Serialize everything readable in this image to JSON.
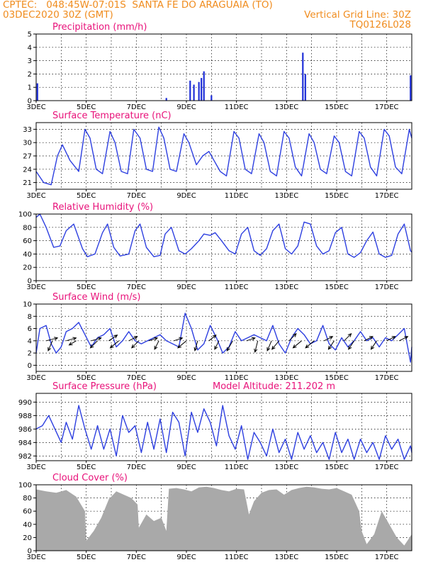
{
  "header": {
    "line1_left": "CPTEC:   048:45W-07:01S  SANTA FE DO ARAGUAIA (TO)",
    "line2_left": "03DEC2020 30Z (GMT)",
    "line2_right": "Vertical Grid Line: 30Z",
    "line3_right": "TQ0126L028"
  },
  "colors": {
    "header": "#f08c1e",
    "title": "#e8127a",
    "line": "#2d3fe0",
    "bar": "#1f2fd8",
    "cloud": "#a9a9a9"
  },
  "x_axis": {
    "labels": [
      "3DEC",
      "5DEC",
      "7DEC",
      "9DEC",
      "11DEC",
      "13DEC",
      "15DEC",
      "17DEC"
    ],
    "start_day": 3.0,
    "end_day": 18.0
  },
  "chart_data": [
    {
      "type": "bar",
      "title": "Precipitation (mm/h)",
      "yticks": [
        0,
        1,
        2,
        3,
        4,
        5
      ],
      "ylim": [
        0,
        5
      ],
      "events": [
        {
          "day": 3.05,
          "value": 1.3
        },
        {
          "day": 8.2,
          "value": 0.2
        },
        {
          "day": 9.15,
          "value": 1.5
        },
        {
          "day": 9.3,
          "value": 1.2
        },
        {
          "day": 9.5,
          "value": 1.4
        },
        {
          "day": 9.6,
          "value": 1.7
        },
        {
          "day": 9.7,
          "value": 2.2
        },
        {
          "day": 10.0,
          "value": 0.4
        },
        {
          "day": 13.65,
          "value": 3.6
        },
        {
          "day": 13.75,
          "value": 2.0
        },
        {
          "day": 17.95,
          "value": 1.9
        }
      ]
    },
    {
      "type": "line",
      "title": "Surface Temperature (nC)",
      "yticks": [
        21,
        24,
        27,
        30,
        33
      ],
      "ylim": [
        19.5,
        34.5
      ],
      "x": [
        3.0,
        3.3,
        3.6,
        3.85,
        4.05,
        4.35,
        4.7,
        4.95,
        5.15,
        5.4,
        5.65,
        5.95,
        6.15,
        6.4,
        6.65,
        6.9,
        7.15,
        7.4,
        7.65,
        7.9,
        8.1,
        8.35,
        8.6,
        8.9,
        9.1,
        9.4,
        9.65,
        9.9,
        10.1,
        10.35,
        10.6,
        10.9,
        11.1,
        11.35,
        11.6,
        11.9,
        12.1,
        12.35,
        12.6,
        12.9,
        13.1,
        13.35,
        13.6,
        13.9,
        14.1,
        14.35,
        14.6,
        14.9,
        15.1,
        15.35,
        15.6,
        15.9,
        16.1,
        16.35,
        16.6,
        16.9,
        17.1,
        17.35,
        17.6,
        17.9,
        18.0
      ],
      "values": [
        23.5,
        21.0,
        20.5,
        27.0,
        29.5,
        26.0,
        23.5,
        33.0,
        31.0,
        24.0,
        23.0,
        32.5,
        30.0,
        23.5,
        23.0,
        33.0,
        31.0,
        24.0,
        23.5,
        33.5,
        31.0,
        24.0,
        23.5,
        32.0,
        30.0,
        25.0,
        27.0,
        28.0,
        26.0,
        23.5,
        22.5,
        32.5,
        31.0,
        24.0,
        23.0,
        32.0,
        30.0,
        23.5,
        22.5,
        32.5,
        31.0,
        24.5,
        22.5,
        32.0,
        30.0,
        24.0,
        23.0,
        31.5,
        30.0,
        23.5,
        22.5,
        32.5,
        31.0,
        24.5,
        22.5,
        33.0,
        31.5,
        24.5,
        23.0,
        33.0,
        31.0
      ]
    },
    {
      "type": "line",
      "title": "Relative Humidity (%)",
      "yticks": [
        0,
        20,
        40,
        60,
        80,
        100
      ],
      "ylim": [
        0,
        100
      ],
      "x": [
        3.0,
        3.15,
        3.4,
        3.7,
        3.95,
        4.2,
        4.5,
        4.85,
        5.05,
        5.35,
        5.65,
        5.85,
        6.1,
        6.35,
        6.7,
        6.95,
        7.15,
        7.4,
        7.7,
        7.95,
        8.15,
        8.4,
        8.7,
        8.95,
        9.2,
        9.5,
        9.7,
        9.95,
        10.15,
        10.4,
        10.7,
        10.95,
        11.2,
        11.45,
        11.7,
        11.95,
        12.2,
        12.45,
        12.7,
        12.95,
        13.2,
        13.45,
        13.7,
        13.95,
        14.2,
        14.45,
        14.7,
        14.95,
        15.2,
        15.45,
        15.7,
        15.95,
        16.2,
        16.45,
        16.7,
        16.95,
        17.2,
        17.45,
        17.7,
        17.95,
        18.0
      ],
      "values": [
        95,
        100,
        80,
        50,
        52,
        75,
        85,
        48,
        36,
        40,
        72,
        85,
        50,
        37,
        40,
        75,
        85,
        50,
        36,
        38,
        70,
        80,
        45,
        40,
        48,
        60,
        70,
        68,
        72,
        60,
        45,
        40,
        70,
        80,
        45,
        38,
        48,
        75,
        85,
        48,
        40,
        52,
        88,
        85,
        52,
        40,
        45,
        72,
        80,
        40,
        35,
        42,
        60,
        73,
        40,
        35,
        38,
        70,
        85,
        45,
        43
      ]
    },
    {
      "type": "line",
      "title": "Surface Wind (m/s)",
      "yticks": [
        0,
        2,
        4,
        6,
        8,
        10
      ],
      "ylim": [
        -1,
        10
      ],
      "x": [
        3.0,
        3.15,
        3.4,
        3.6,
        3.8,
        4.0,
        4.2,
        4.45,
        4.7,
        4.95,
        5.2,
        5.45,
        5.7,
        5.95,
        6.2,
        6.45,
        6.7,
        6.95,
        7.2,
        7.45,
        7.7,
        7.95,
        8.2,
        8.45,
        8.7,
        8.95,
        9.2,
        9.45,
        9.7,
        9.95,
        10.2,
        10.45,
        10.7,
        10.95,
        11.2,
        11.45,
        11.7,
        11.95,
        12.2,
        12.45,
        12.7,
        12.95,
        13.2,
        13.45,
        13.7,
        13.95,
        14.2,
        14.45,
        14.7,
        14.95,
        15.2,
        15.45,
        15.7,
        15.95,
        16.2,
        16.45,
        16.7,
        16.95,
        17.2,
        17.45,
        17.7,
        17.95,
        18.0
      ],
      "values": [
        2.0,
        6.0,
        6.5,
        3.5,
        2.0,
        3.0,
        5.5,
        6.0,
        7.0,
        5.0,
        3.0,
        4.5,
        5.0,
        6.0,
        3.0,
        4.0,
        5.5,
        4.0,
        3.5,
        4.0,
        4.5,
        5.0,
        4.0,
        3.5,
        3.0,
        8.5,
        6.0,
        2.5,
        3.5,
        6.5,
        4.5,
        2.0,
        3.0,
        5.5,
        4.0,
        4.5,
        5.0,
        4.5,
        4.0,
        6.5,
        3.5,
        2.0,
        4.5,
        6.0,
        5.0,
        3.5,
        4.0,
        6.5,
        3.5,
        2.5,
        4.5,
        3.0,
        4.0,
        5.5,
        4.0,
        4.5,
        3.0,
        4.5,
        4.0,
        5.0,
        6.0,
        0.5,
        3.0
      ],
      "arrows": [
        {
          "day": 3.4,
          "dx": 16,
          "dy": -4
        },
        {
          "day": 3.65,
          "dx": -6,
          "dy": 14
        },
        {
          "day": 4.2,
          "dx": 14,
          "dy": -4
        },
        {
          "day": 4.6,
          "dx": -10,
          "dy": 6
        },
        {
          "day": 5.2,
          "dx": 14,
          "dy": -4
        },
        {
          "day": 5.45,
          "dx": -10,
          "dy": 10
        },
        {
          "day": 5.9,
          "dx": 12,
          "dy": -8
        },
        {
          "day": 6.3,
          "dx": -12,
          "dy": 10
        },
        {
          "day": 6.7,
          "dx": 12,
          "dy": -6
        },
        {
          "day": 7.1,
          "dx": -10,
          "dy": 10
        },
        {
          "day": 7.5,
          "dx": 12,
          "dy": -4
        },
        {
          "day": 7.9,
          "dx": -6,
          "dy": 12
        },
        {
          "day": 8.5,
          "dx": 12,
          "dy": -4
        },
        {
          "day": 9.0,
          "dx": -12,
          "dy": 10
        },
        {
          "day": 9.45,
          "dx": -4,
          "dy": 14
        },
        {
          "day": 9.9,
          "dx": 10,
          "dy": -8
        },
        {
          "day": 10.3,
          "dx": -6,
          "dy": 12
        },
        {
          "day": 10.85,
          "dx": -8,
          "dy": 14
        },
        {
          "day": 11.4,
          "dx": 12,
          "dy": -4
        },
        {
          "day": 11.85,
          "dx": -4,
          "dy": 16
        },
        {
          "day": 12.4,
          "dx": -6,
          "dy": 14
        },
        {
          "day": 12.7,
          "dx": -10,
          "dy": 12
        },
        {
          "day": 13.1,
          "dx": 10,
          "dy": -10
        },
        {
          "day": 13.6,
          "dx": -12,
          "dy": 10
        },
        {
          "day": 14.1,
          "dx": -12,
          "dy": 10
        },
        {
          "day": 14.5,
          "dx": 12,
          "dy": -6
        },
        {
          "day": 14.9,
          "dx": -8,
          "dy": 12
        },
        {
          "day": 15.3,
          "dx": 10,
          "dy": -10
        },
        {
          "day": 15.7,
          "dx": -8,
          "dy": 12
        },
        {
          "day": 16.1,
          "dx": 12,
          "dy": -6
        },
        {
          "day": 16.6,
          "dx": -8,
          "dy": 12
        },
        {
          "day": 17.0,
          "dx": 12,
          "dy": -6
        },
        {
          "day": 17.5,
          "dx": 12,
          "dy": -6
        }
      ]
    },
    {
      "type": "line",
      "title": "Surface Pressure (hPa)",
      "subtitle": "Model Altitude: 211.202 m",
      "yticks": [
        982,
        984,
        986,
        988,
        990
      ],
      "ylim": [
        981.3,
        991.3
      ],
      "x": [
        3.0,
        3.25,
        3.5,
        3.75,
        4.0,
        4.2,
        4.45,
        4.7,
        4.95,
        5.2,
        5.45,
        5.7,
        5.95,
        6.2,
        6.45,
        6.7,
        6.95,
        7.2,
        7.45,
        7.7,
        7.95,
        8.2,
        8.45,
        8.7,
        8.95,
        9.2,
        9.45,
        9.7,
        9.95,
        10.2,
        10.45,
        10.7,
        10.95,
        11.2,
        11.45,
        11.7,
        11.95,
        12.2,
        12.45,
        12.7,
        12.95,
        13.2,
        13.45,
        13.7,
        13.95,
        14.2,
        14.45,
        14.7,
        14.95,
        15.2,
        15.45,
        15.7,
        15.95,
        16.2,
        16.45,
        16.7,
        16.95,
        17.2,
        17.45,
        17.7,
        17.95,
        18.0
      ],
      "values": [
        986.0,
        986.5,
        988.0,
        986.0,
        984.0,
        987.0,
        984.5,
        989.5,
        986.0,
        983.0,
        986.5,
        983.0,
        986.0,
        982.0,
        988.0,
        985.5,
        986.5,
        982.5,
        987.0,
        983.0,
        987.5,
        982.5,
        988.5,
        987.0,
        982.0,
        988.5,
        985.5,
        989.0,
        987.0,
        983.5,
        989.5,
        985.0,
        983.0,
        986.5,
        981.5,
        985.5,
        984.0,
        982.0,
        986.0,
        982.5,
        984.5,
        981.5,
        985.5,
        983.0,
        985.0,
        982.5,
        984.0,
        981.5,
        985.5,
        982.5,
        984.5,
        981.5,
        984.5,
        982.5,
        984.0,
        981.5,
        985.0,
        983.0,
        984.5,
        981.5,
        983.5,
        982.5
      ]
    },
    {
      "type": "area",
      "title": "Cloud Cover (%)",
      "yticks": [
        0,
        20,
        40,
        60,
        80,
        100
      ],
      "ylim": [
        0,
        100
      ],
      "x": [
        3.0,
        3.4,
        3.8,
        4.2,
        4.6,
        4.95,
        5.0,
        5.3,
        5.6,
        5.9,
        6.2,
        6.5,
        6.8,
        7.05,
        7.1,
        7.4,
        7.7,
        8.0,
        8.2,
        8.3,
        8.6,
        8.9,
        9.2,
        9.5,
        9.8,
        10.1,
        10.4,
        10.7,
        11.0,
        11.3,
        11.5,
        11.7,
        12.0,
        12.3,
        12.6,
        12.9,
        13.2,
        13.5,
        13.8,
        14.1,
        14.4,
        14.7,
        15.0,
        15.3,
        15.6,
        15.9,
        16.0,
        16.2,
        16.5,
        16.8,
        17.1,
        17.4,
        17.7,
        18.0
      ],
      "values": [
        93,
        90,
        88,
        92,
        82,
        60,
        15,
        30,
        50,
        78,
        90,
        85,
        80,
        70,
        35,
        55,
        45,
        50,
        30,
        94,
        95,
        93,
        90,
        96,
        97,
        95,
        92,
        90,
        94,
        93,
        55,
        75,
        88,
        92,
        93,
        85,
        92,
        95,
        97,
        96,
        94,
        93,
        95,
        90,
        85,
        60,
        30,
        10,
        25,
        60,
        40,
        20,
        8,
        25
      ]
    }
  ]
}
